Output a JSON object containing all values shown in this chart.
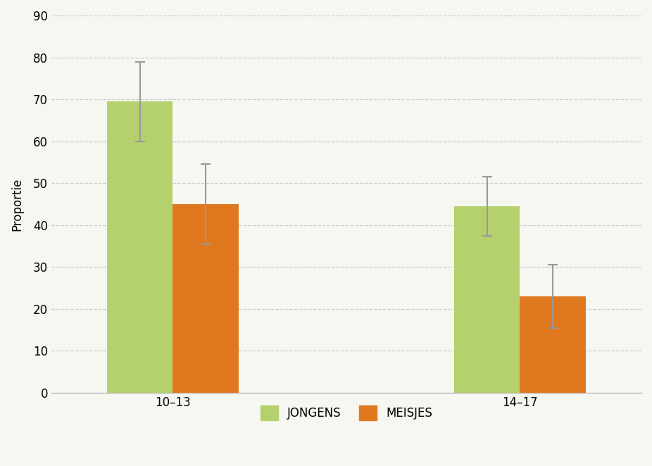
{
  "groups": [
    "10–13",
    "14–17"
  ],
  "jongens_values": [
    69.5,
    44.5
  ],
  "meisjes_values": [
    45.0,
    23.0
  ],
  "jongens_yerr_up": [
    9.5,
    7.0
  ],
  "jongens_yerr_dn": [
    9.5,
    7.0
  ],
  "meisjes_yerr_up": [
    9.5,
    7.5
  ],
  "meisjes_yerr_dn": [
    9.5,
    7.5
  ],
  "jongens_color": "#b5d16d",
  "meisjes_color": "#e07820",
  "ylabel": "Proportie",
  "ylim": [
    0,
    90
  ],
  "yticks": [
    0,
    10,
    20,
    30,
    40,
    50,
    60,
    70,
    80,
    90
  ],
  "legend_jongens": "JONGENS",
  "legend_meisjes": "MEISJES",
  "bar_width": 0.38,
  "background_color": "#f7f7f2",
  "grid_color": "#cccccc",
  "error_color": "#999999",
  "capsize": 5,
  "axis_fontsize": 12,
  "tick_fontsize": 12,
  "legend_fontsize": 12
}
